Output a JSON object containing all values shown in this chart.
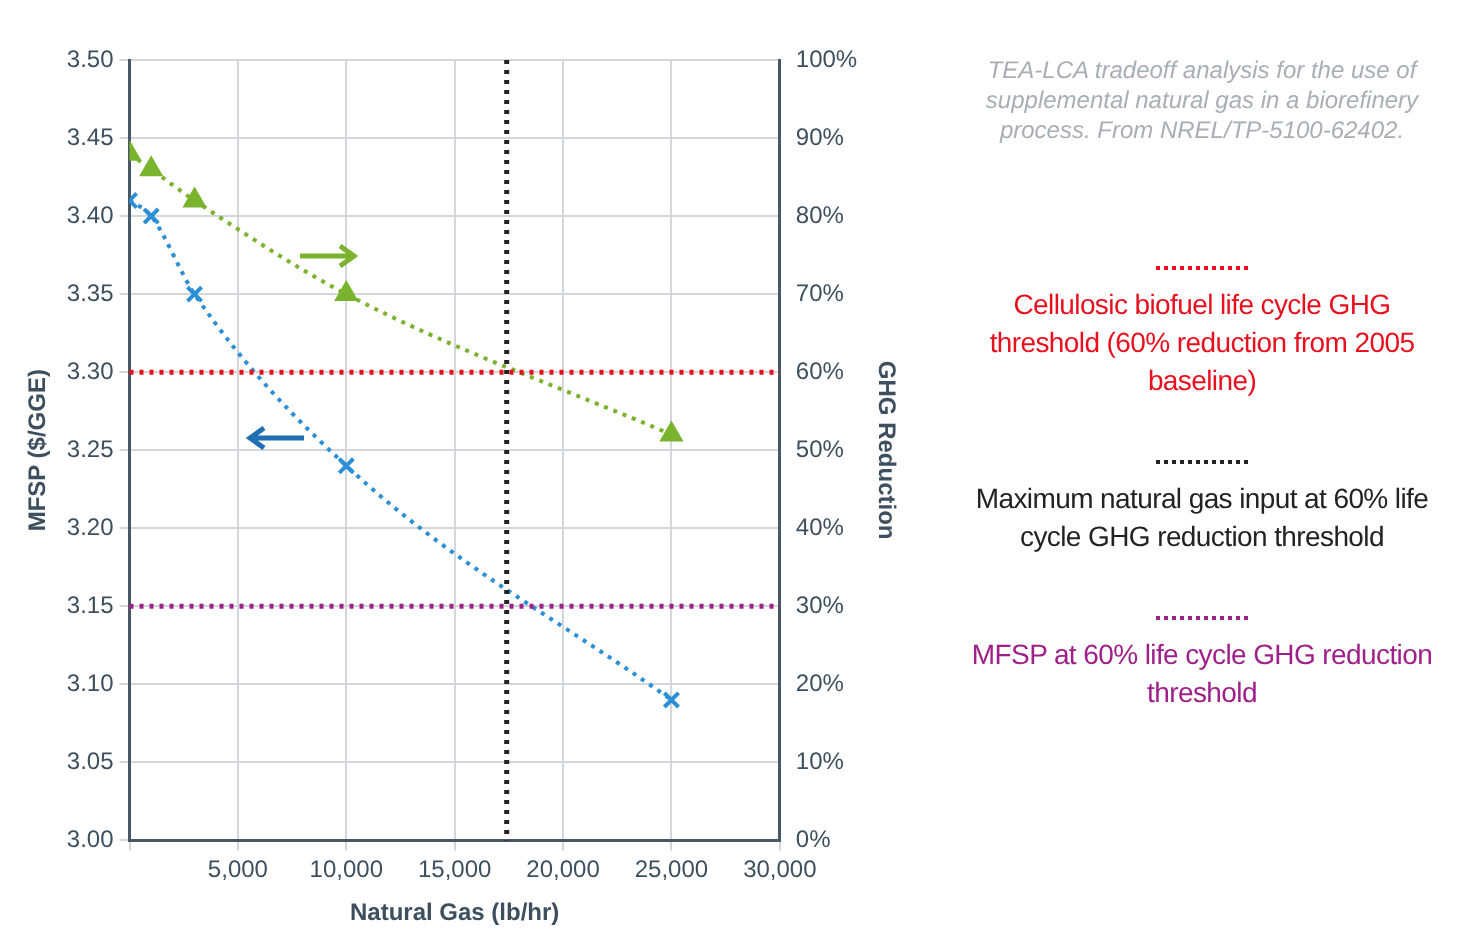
{
  "chart_data": {
    "type": "line",
    "xlabel": "Natural Gas (lb/hr)",
    "ylabel": "MFSP ($/GGE)",
    "y2label": "GHG Reduction",
    "annotations": [
      "TEA-LCA tradeoff analysis for the use of supplemental natural gas in a biorefinery process. From NREL/TP-5100-62402."
    ],
    "x": [
      0,
      1000,
      3000,
      10000,
      25000
    ],
    "series": [
      {
        "color": "#2b8fd6",
        "values": [
          3.41,
          3.4,
          3.35,
          3.24,
          3.09
        ],
        "marker": "cross"
      },
      {
        "color": "#7ab32e",
        "values": [
          88,
          86,
          82,
          70,
          52
        ],
        "axis": "y2",
        "marker": "triangle"
      }
    ],
    "xlim": [
      0,
      30000
    ],
    "xticks": [
      {
        "value": 0,
        "label": null
      },
      {
        "value": 5000,
        "label": "5,000"
      },
      {
        "value": 10000,
        "label": "10,000"
      },
      {
        "value": 15000,
        "label": "15,000"
      },
      {
        "value": 20000,
        "label": "20,000"
      },
      {
        "value": 25000,
        "label": "25,000"
      },
      {
        "value": 30000,
        "label": "30,000"
      }
    ],
    "ylim": [
      3.0,
      3.5
    ],
    "yticks": [
      {
        "value": 3.0,
        "label": "3.00"
      },
      {
        "value": 3.05,
        "label": "3.05"
      },
      {
        "value": 3.1,
        "label": "3.10"
      },
      {
        "value": 3.15,
        "label": "3.15"
      },
      {
        "value": 3.2,
        "label": "3.20"
      },
      {
        "value": 3.25,
        "label": "3.25"
      },
      {
        "value": 3.3,
        "label": "3.30"
      },
      {
        "value": 3.35,
        "label": "3.35"
      },
      {
        "value": 3.4,
        "label": "3.40"
      },
      {
        "value": 3.45,
        "label": "3.45"
      },
      {
        "value": 3.5,
        "label": "3.50"
      }
    ],
    "y2lim": [
      0,
      100
    ],
    "y2ticks": [
      {
        "value": 0,
        "label": "0%"
      },
      {
        "value": 10,
        "label": "10%"
      },
      {
        "value": 20,
        "label": "20%"
      },
      {
        "value": 30,
        "label": "30%"
      },
      {
        "value": 40,
        "label": "40%"
      },
      {
        "value": 50,
        "label": "50%"
      },
      {
        "value": 60,
        "label": "60%"
      },
      {
        "value": 70,
        "label": "70%"
      },
      {
        "value": 80,
        "label": "80%"
      },
      {
        "value": 90,
        "label": "90%"
      },
      {
        "value": 100,
        "label": "100%"
      }
    ],
    "ref_lines": [
      {
        "axis": "y2",
        "value": 60,
        "label": "Cellulosic biofuel life cycle GHG threshold (60% reduction from 2005 baseline)",
        "color": "#e8101e",
        "line_style": "dotted"
      },
      {
        "axis": "x",
        "value": 17400,
        "label": "Maximum natural gas input at 60% life cycle GHG reduction threshold",
        "color": "#222222",
        "line_style": "dotted"
      },
      {
        "axis": "y",
        "value": 3.15,
        "label": "MFSP at 60% life cycle GHG reduction threshold",
        "color": "#a0208a",
        "line_style": "dotted"
      }
    ],
    "grid": true,
    "legend": "right",
    "line_style": "dotted"
  }
}
